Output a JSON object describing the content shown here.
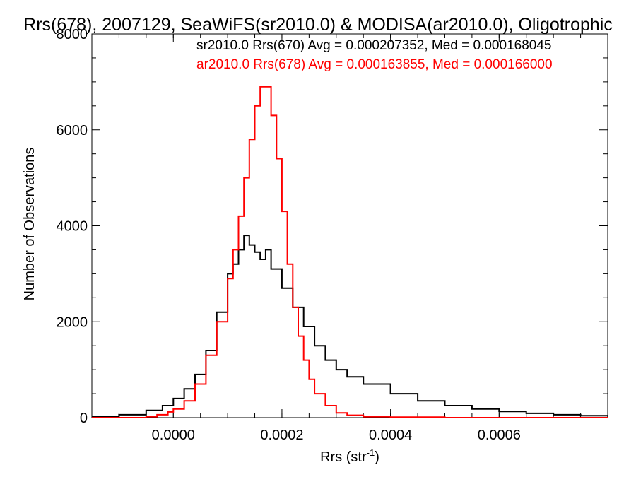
{
  "chart_data": {
    "type": "line",
    "title": "Rrs(678), 2007129, SeaWiFS(sr2010.0) & MODISA(ar2010.0), Oligotrophic",
    "xlabel": "Rrs (str",
    "xlabel_sup": "-1",
    "xlabel_close": ")",
    "ylabel": "Number of Observations",
    "xlim": [
      -0.00015,
      0.0008
    ],
    "ylim": [
      0,
      8000
    ],
    "x_ticks": [
      0.0,
      0.0002,
      0.0004,
      0.0006
    ],
    "x_tick_labels": [
      "0.0000",
      "0.0002",
      "0.0004",
      "0.0006"
    ],
    "y_ticks": [
      0,
      2000,
      4000,
      6000,
      8000
    ],
    "y_tick_labels": [
      "0",
      "2000",
      "4000",
      "6000",
      "8000"
    ],
    "legend_placement": "top-right",
    "colors": {
      "series_black": "#000000",
      "series_red": "#ff0000"
    },
    "series": [
      {
        "legend": "sr2010.0 Rrs(670) Avg = 0.000207352, Med = 0.000168045",
        "color": "#000000",
        "x": [
          -0.00015,
          -0.0001,
          -5e-05,
          -2e-05,
          0.0,
          2e-05,
          4e-05,
          6e-05,
          8e-05,
          0.0001,
          0.00011,
          0.00012,
          0.00013,
          0.00014,
          0.00015,
          0.00016,
          0.00017,
          0.00018,
          0.0002,
          0.00022,
          0.00024,
          0.00026,
          0.00028,
          0.0003,
          0.00032,
          0.00035,
          0.0004,
          0.00045,
          0.0005,
          0.00055,
          0.0006,
          0.00065,
          0.0007,
          0.00075,
          0.0008
        ],
        "y": [
          20,
          60,
          150,
          250,
          400,
          600,
          900,
          1400,
          2200,
          3000,
          3200,
          3500,
          3800,
          3600,
          3450,
          3300,
          3500,
          3100,
          2700,
          2300,
          1900,
          1500,
          1200,
          1000,
          850,
          700,
          500,
          350,
          250,
          180,
          130,
          90,
          60,
          40,
          20
        ]
      },
      {
        "legend": "ar2010.0 Rrs(678) Avg = 0.000163855, Med = 0.000166000",
        "color": "#ff0000",
        "x": [
          -0.00015,
          -0.0001,
          -5e-05,
          -3e-05,
          -1e-05,
          0.0,
          2e-05,
          4e-05,
          6e-05,
          8e-05,
          0.0001,
          0.00011,
          0.00012,
          0.00013,
          0.00014,
          0.00015,
          0.00016,
          0.00017,
          0.00018,
          0.00019,
          0.0002,
          0.00021,
          0.00022,
          0.00023,
          0.00024,
          0.00025,
          0.00026,
          0.00028,
          0.0003,
          0.00032,
          0.00035,
          0.0004,
          0.0005,
          0.0006,
          0.0008
        ],
        "y": [
          0,
          0,
          20,
          60,
          120,
          180,
          350,
          700,
          1300,
          2000,
          2900,
          3500,
          4200,
          5000,
          5800,
          6500,
          6900,
          6900,
          6300,
          5400,
          4300,
          3200,
          2300,
          1700,
          1200,
          800,
          500,
          250,
          100,
          50,
          20,
          10,
          0,
          0,
          0
        ]
      }
    ]
  }
}
